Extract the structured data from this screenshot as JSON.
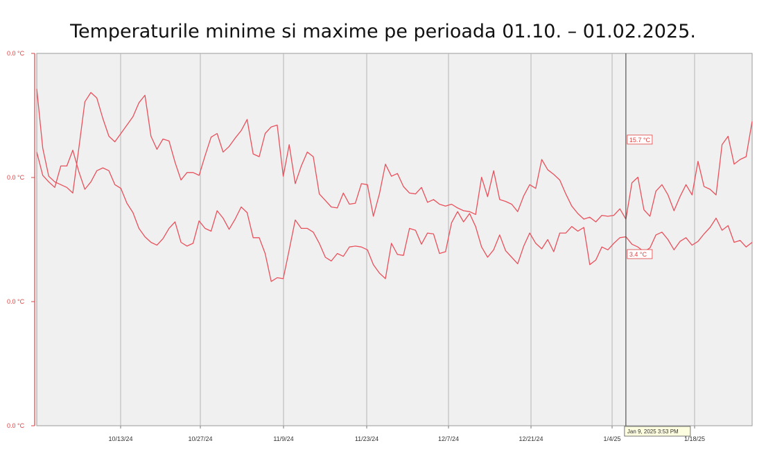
{
  "chart_data": {
    "type": "line",
    "title": "Temperaturile minime si maxime pe perioada 01.10. – 01.02.2025.",
    "y_tick_labels": [
      "0.0 °C",
      "0.0 °C",
      "0.0 °C",
      "0.0 °C"
    ],
    "x_tick_labels": [
      "10/13/24",
      "10/27/24",
      "11/9/24",
      "11/23/24",
      "12/7/24",
      "12/21/24",
      "1/4/25",
      "1/18/25"
    ],
    "x_range": [
      "2024-10-03",
      "2025-01-30"
    ],
    "y_range": [
      -15,
      25
    ],
    "grid": "vertical",
    "cursor_label": "Jan 9, 2025 3:53 PM",
    "cursor_date": "2025-01-09",
    "annotations": [
      {
        "label": "15.7 °C",
        "date": "2025-01-09",
        "value": 15.7
      },
      {
        "label": "3.4 °C",
        "date": "2025-01-09",
        "value": 3.4
      }
    ],
    "colors": {
      "series": "#e8505b",
      "axis": "#e04040",
      "plot_bg": "#f0f0f0",
      "grid": "#b5b5b5"
    },
    "series": [
      {
        "start_date": "2024-10-03",
        "values": [
          21.2,
          14.8,
          11.8,
          11.2,
          10.9,
          10.6,
          10.0,
          14.8,
          19.8,
          20.8,
          20.2,
          18.0,
          16.1,
          15.5,
          16.4,
          17.3,
          18.2,
          19.7,
          20.5,
          16.1,
          14.7,
          15.8,
          15.6,
          13.3,
          11.4,
          12.2,
          12.2,
          11.9,
          14.0,
          16.0,
          16.4,
          14.4,
          15.0,
          15.9,
          16.7,
          17.9,
          14.2,
          13.9,
          16.4,
          17.1,
          17.3,
          11.8,
          15.2,
          11.0,
          12.9,
          14.4,
          13.9,
          9.9,
          9.2,
          8.5,
          8.4,
          10.0,
          8.8,
          8.9,
          11.0,
          10.9,
          7.5,
          9.9,
          13.1,
          11.8,
          12.1,
          10.7,
          10.0,
          9.9,
          10.6,
          9.0,
          9.3,
          8.8,
          8.6,
          8.8,
          8.4,
          8.1,
          8.0,
          7.7,
          11.7,
          9.6,
          12.4,
          9.3,
          9.1,
          8.8,
          8.0,
          9.7,
          10.9,
          10.5,
          13.6,
          12.5,
          12.0,
          11.4,
          9.9,
          8.6,
          7.8,
          7.2,
          7.4,
          6.9,
          7.6,
          7.5,
          7.6,
          8.3,
          7.2,
          11.1,
          11.7,
          8.2,
          7.5,
          10.2,
          10.9,
          9.8,
          8.1,
          9.6,
          10.9,
          9.8,
          13.4,
          10.7,
          10.4,
          9.8
        ],
        "end_values": [
          15.2,
          16.1,
          13.1,
          13.6,
          13.9,
          17.7
        ]
      },
      {
        "start_date": "2024-10-03",
        "values": [
          14.4,
          11.9,
          11.2,
          10.6,
          12.9,
          12.9,
          14.6,
          12.3,
          10.4,
          11.2,
          12.4,
          12.7,
          12.4,
          10.9,
          10.5,
          8.9,
          7.9,
          6.2,
          5.3,
          4.7,
          4.4,
          5.1,
          6.2,
          6.9,
          4.7,
          4.3,
          4.6,
          7.0,
          6.2,
          5.9,
          8.1,
          7.3,
          6.1,
          7.2,
          8.5,
          7.9,
          5.2,
          5.2,
          3.5,
          0.5,
          0.9,
          0.8,
          3.9,
          7.1,
          6.2,
          6.2,
          5.8,
          4.6,
          3.1,
          2.7,
          3.5,
          3.2,
          4.2,
          4.3,
          4.2,
          3.9,
          2.3,
          1.4,
          0.8,
          4.6,
          3.4,
          3.3,
          6.2,
          6.0,
          4.5,
          5.7,
          5.6,
          3.5,
          3.7,
          6.8,
          8.0,
          6.9,
          7.8,
          6.4,
          4.2,
          3.1,
          3.9,
          5.5,
          3.8,
          3.1,
          2.4,
          4.3,
          5.7,
          4.6,
          4.0,
          5.0,
          3.7,
          5.7,
          5.7,
          6.4,
          5.9,
          6.3,
          2.3,
          2.8,
          4.2,
          3.9,
          4.6,
          5.2,
          5.3,
          4.5,
          4.2,
          3.7,
          4.1,
          5.5,
          5.8,
          5.0,
          3.9,
          4.8,
          5.2,
          4.4,
          4.8,
          5.6,
          6.3,
          7.3
        ],
        "end_values": [
          6.0,
          6.5,
          4.7,
          4.9,
          4.2,
          4.7
        ]
      }
    ]
  }
}
